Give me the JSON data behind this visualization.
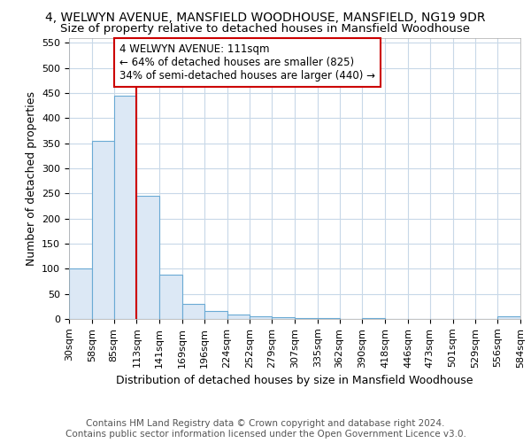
{
  "title": "4, WELWYN AVENUE, MANSFIELD WOODHOUSE, MANSFIELD, NG19 9DR",
  "subtitle": "Size of property relative to detached houses in Mansfield Woodhouse",
  "xlabel": "Distribution of detached houses by size in Mansfield Woodhouse",
  "ylabel": "Number of detached properties",
  "footer_line1": "Contains HM Land Registry data © Crown copyright and database right 2024.",
  "footer_line2": "Contains public sector information licensed under the Open Government Licence v3.0.",
  "bin_edges": [
    30,
    58,
    85,
    113,
    141,
    169,
    196,
    224,
    252,
    279,
    307,
    335,
    362,
    390,
    418,
    446,
    473,
    501,
    529,
    556,
    584
  ],
  "bar_heights": [
    100,
    355,
    445,
    245,
    88,
    30,
    15,
    8,
    5,
    3,
    2,
    2,
    0,
    1,
    0,
    0,
    0,
    0,
    0,
    5
  ],
  "bar_color": "#dce8f5",
  "bar_edge_color": "#6aaad4",
  "vline_x": 113,
  "vline_color": "#cc0000",
  "annotation_text": "4 WELWYN AVENUE: 111sqm\n← 64% of detached houses are smaller (825)\n34% of semi-detached houses are larger (440) →",
  "annotation_box_color": "white",
  "annotation_box_edge_color": "#cc0000",
  "ylim": [
    0,
    560
  ],
  "yticks": [
    0,
    50,
    100,
    150,
    200,
    250,
    300,
    350,
    400,
    450,
    500,
    550
  ],
  "bg_color": "#ffffff",
  "grid_color": "#c8d8e8",
  "title_fontsize": 10,
  "subtitle_fontsize": 9.5,
  "axis_label_fontsize": 9,
  "tick_fontsize": 8,
  "footer_fontsize": 7.5
}
